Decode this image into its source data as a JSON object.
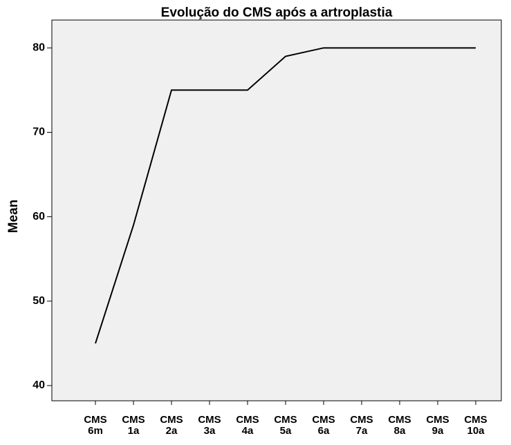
{
  "chart_data": {
    "type": "line",
    "title": "Evolução do CMS após a artroplastia",
    "y_label": "Mean",
    "categories": [
      "CMS 6m",
      "CMS 1a",
      "CMS 2a",
      "CMS 3a",
      "CMS 4a",
      "CMS 5a",
      "CMS 6a",
      "CMS 7a",
      "CMS 8a",
      "CMS 9a",
      "CMS 10a"
    ],
    "values": [
      45,
      59,
      75,
      75,
      75,
      79,
      80,
      80,
      80,
      80,
      80
    ],
    "color": "#000000",
    "ylim": [
      38.2,
      83.3
    ],
    "yticks": [
      40,
      50,
      60,
      70,
      80
    ],
    "grid": false
  }
}
